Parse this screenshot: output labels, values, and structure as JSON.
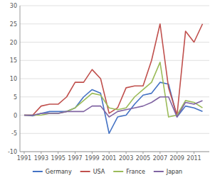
{
  "chart_data": {
    "type": "line",
    "x": [
      1991,
      1992,
      1993,
      1994,
      1995,
      1996,
      1997,
      1998,
      1999,
      2000,
      2001,
      2002,
      2003,
      2004,
      2005,
      2006,
      2007,
      2008,
      2009,
      2010,
      2011,
      2012
    ],
    "series": [
      {
        "name": "Germany",
        "color": "#4472c4",
        "values": [
          0,
          -0.2,
          0.5,
          1,
          1,
          1,
          2,
          5,
          7,
          6,
          -5,
          -0.5,
          0,
          3,
          5.5,
          6,
          9,
          8.5,
          -0.5,
          2.5,
          2,
          1
        ]
      },
      {
        "name": "USA",
        "color": "#c0504d",
        "values": [
          0,
          0,
          2.5,
          3,
          3,
          5,
          9,
          9,
          12.5,
          10,
          0.5,
          2,
          7.5,
          8,
          8,
          15,
          25,
          7.5,
          0,
          23,
          20,
          25
        ]
      },
      {
        "name": "France",
        "color": "#9bbb59",
        "values": [
          0,
          0,
          0,
          0.5,
          0.5,
          1,
          2,
          4,
          6,
          5.5,
          2,
          1.5,
          2,
          5,
          7,
          9,
          14.5,
          -0.5,
          0,
          4,
          3.5,
          2
        ]
      },
      {
        "name": "Japan",
        "color": "#8064a2",
        "values": [
          0,
          0,
          0.5,
          0.5,
          0.5,
          1,
          1,
          1,
          2.5,
          2.5,
          -0.5,
          1,
          1.5,
          2,
          2.5,
          3.5,
          5,
          5,
          -0.5,
          3.5,
          3,
          4
        ]
      }
    ],
    "xlim": [
      1990.5,
      2012.8
    ],
    "xticks": [
      1991,
      1993,
      1995,
      1997,
      1999,
      2001,
      2003,
      2005,
      2007,
      2009,
      2011
    ],
    "ylim": [
      -10,
      30
    ],
    "yticks": [
      -10,
      -5,
      0,
      5,
      10,
      15,
      20,
      25,
      30
    ],
    "grid": true,
    "legend": "bottom"
  }
}
